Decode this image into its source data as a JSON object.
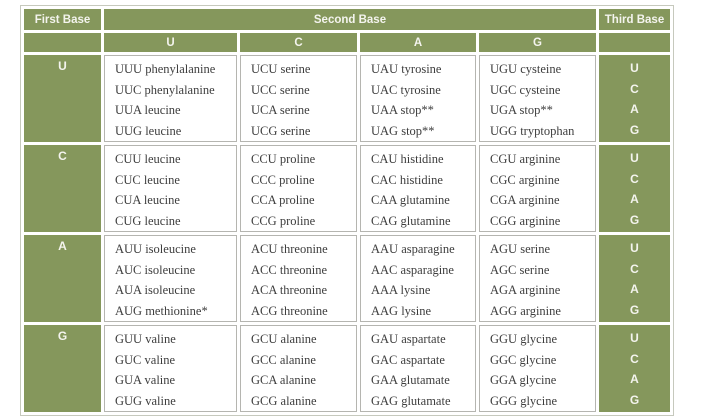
{
  "header": {
    "first_base": "First Base",
    "second_base": "Second Base",
    "third_base": "Third Base",
    "second_base_columns": [
      "U",
      "C",
      "A",
      "G"
    ]
  },
  "groups": [
    {
      "first_base": "U",
      "cells": [
        [
          "UUU phenylalanine",
          "UUC phenylalanine",
          "UUA leucine",
          "UUG leucine"
        ],
        [
          "UCU serine",
          "UCC serine",
          "UCA serine",
          "UCG serine"
        ],
        [
          "UAU tyrosine",
          "UAC tyrosine",
          "UAA stop**",
          "UAG stop**"
        ],
        [
          "UGU cysteine",
          "UGC cysteine",
          "UGA stop**",
          "UGG tryptophan"
        ]
      ],
      "third_base": [
        "U",
        "C",
        "A",
        "G"
      ]
    },
    {
      "first_base": "C",
      "cells": [
        [
          "CUU leucine",
          "CUC leucine",
          "CUA leucine",
          "CUG leucine"
        ],
        [
          "CCU proline",
          "CCC proline",
          "CCA proline",
          "CCG proline"
        ],
        [
          "CAU histidine",
          "CAC histidine",
          "CAA glutamine",
          "CAG glutamine"
        ],
        [
          "CGU arginine",
          "CGC arginine",
          "CGA arginine",
          "CGG arginine"
        ]
      ],
      "third_base": [
        "U",
        "C",
        "A",
        "G"
      ]
    },
    {
      "first_base": "A",
      "cells": [
        [
          "AUU isoleucine",
          "AUC isoleucine",
          "AUA isoleucine",
          "AUG methionine*"
        ],
        [
          "ACU threonine",
          "ACC threonine",
          "ACA threonine",
          "ACG threonine"
        ],
        [
          "AAU asparagine",
          "AAC asparagine",
          "AAA lysine",
          "AAG lysine"
        ],
        [
          "AGU serine",
          "AGC serine",
          "AGA arginine",
          "AGG arginine"
        ]
      ],
      "third_base": [
        "U",
        "C",
        "A",
        "G"
      ]
    },
    {
      "first_base": "G",
      "cells": [
        [
          "GUU valine",
          "GUC valine",
          "GUA valine",
          "GUG valine"
        ],
        [
          "GCU alanine",
          "GCC alanine",
          "GCA alanine",
          "GCG alanine"
        ],
        [
          "GAU aspartate",
          "GAC aspartate",
          "GAA glutamate",
          "GAG glutamate"
        ],
        [
          "GGU glycine",
          "GGC glycine",
          "GGA glycine",
          "GGG glycine"
        ]
      ],
      "third_base": [
        "U",
        "C",
        "A",
        "G"
      ]
    }
  ],
  "colors": {
    "green": "#85975C",
    "header_text": "#F4F4EE",
    "codon_text": "#3D3D3D",
    "cell_border": "#B5B5B0"
  }
}
